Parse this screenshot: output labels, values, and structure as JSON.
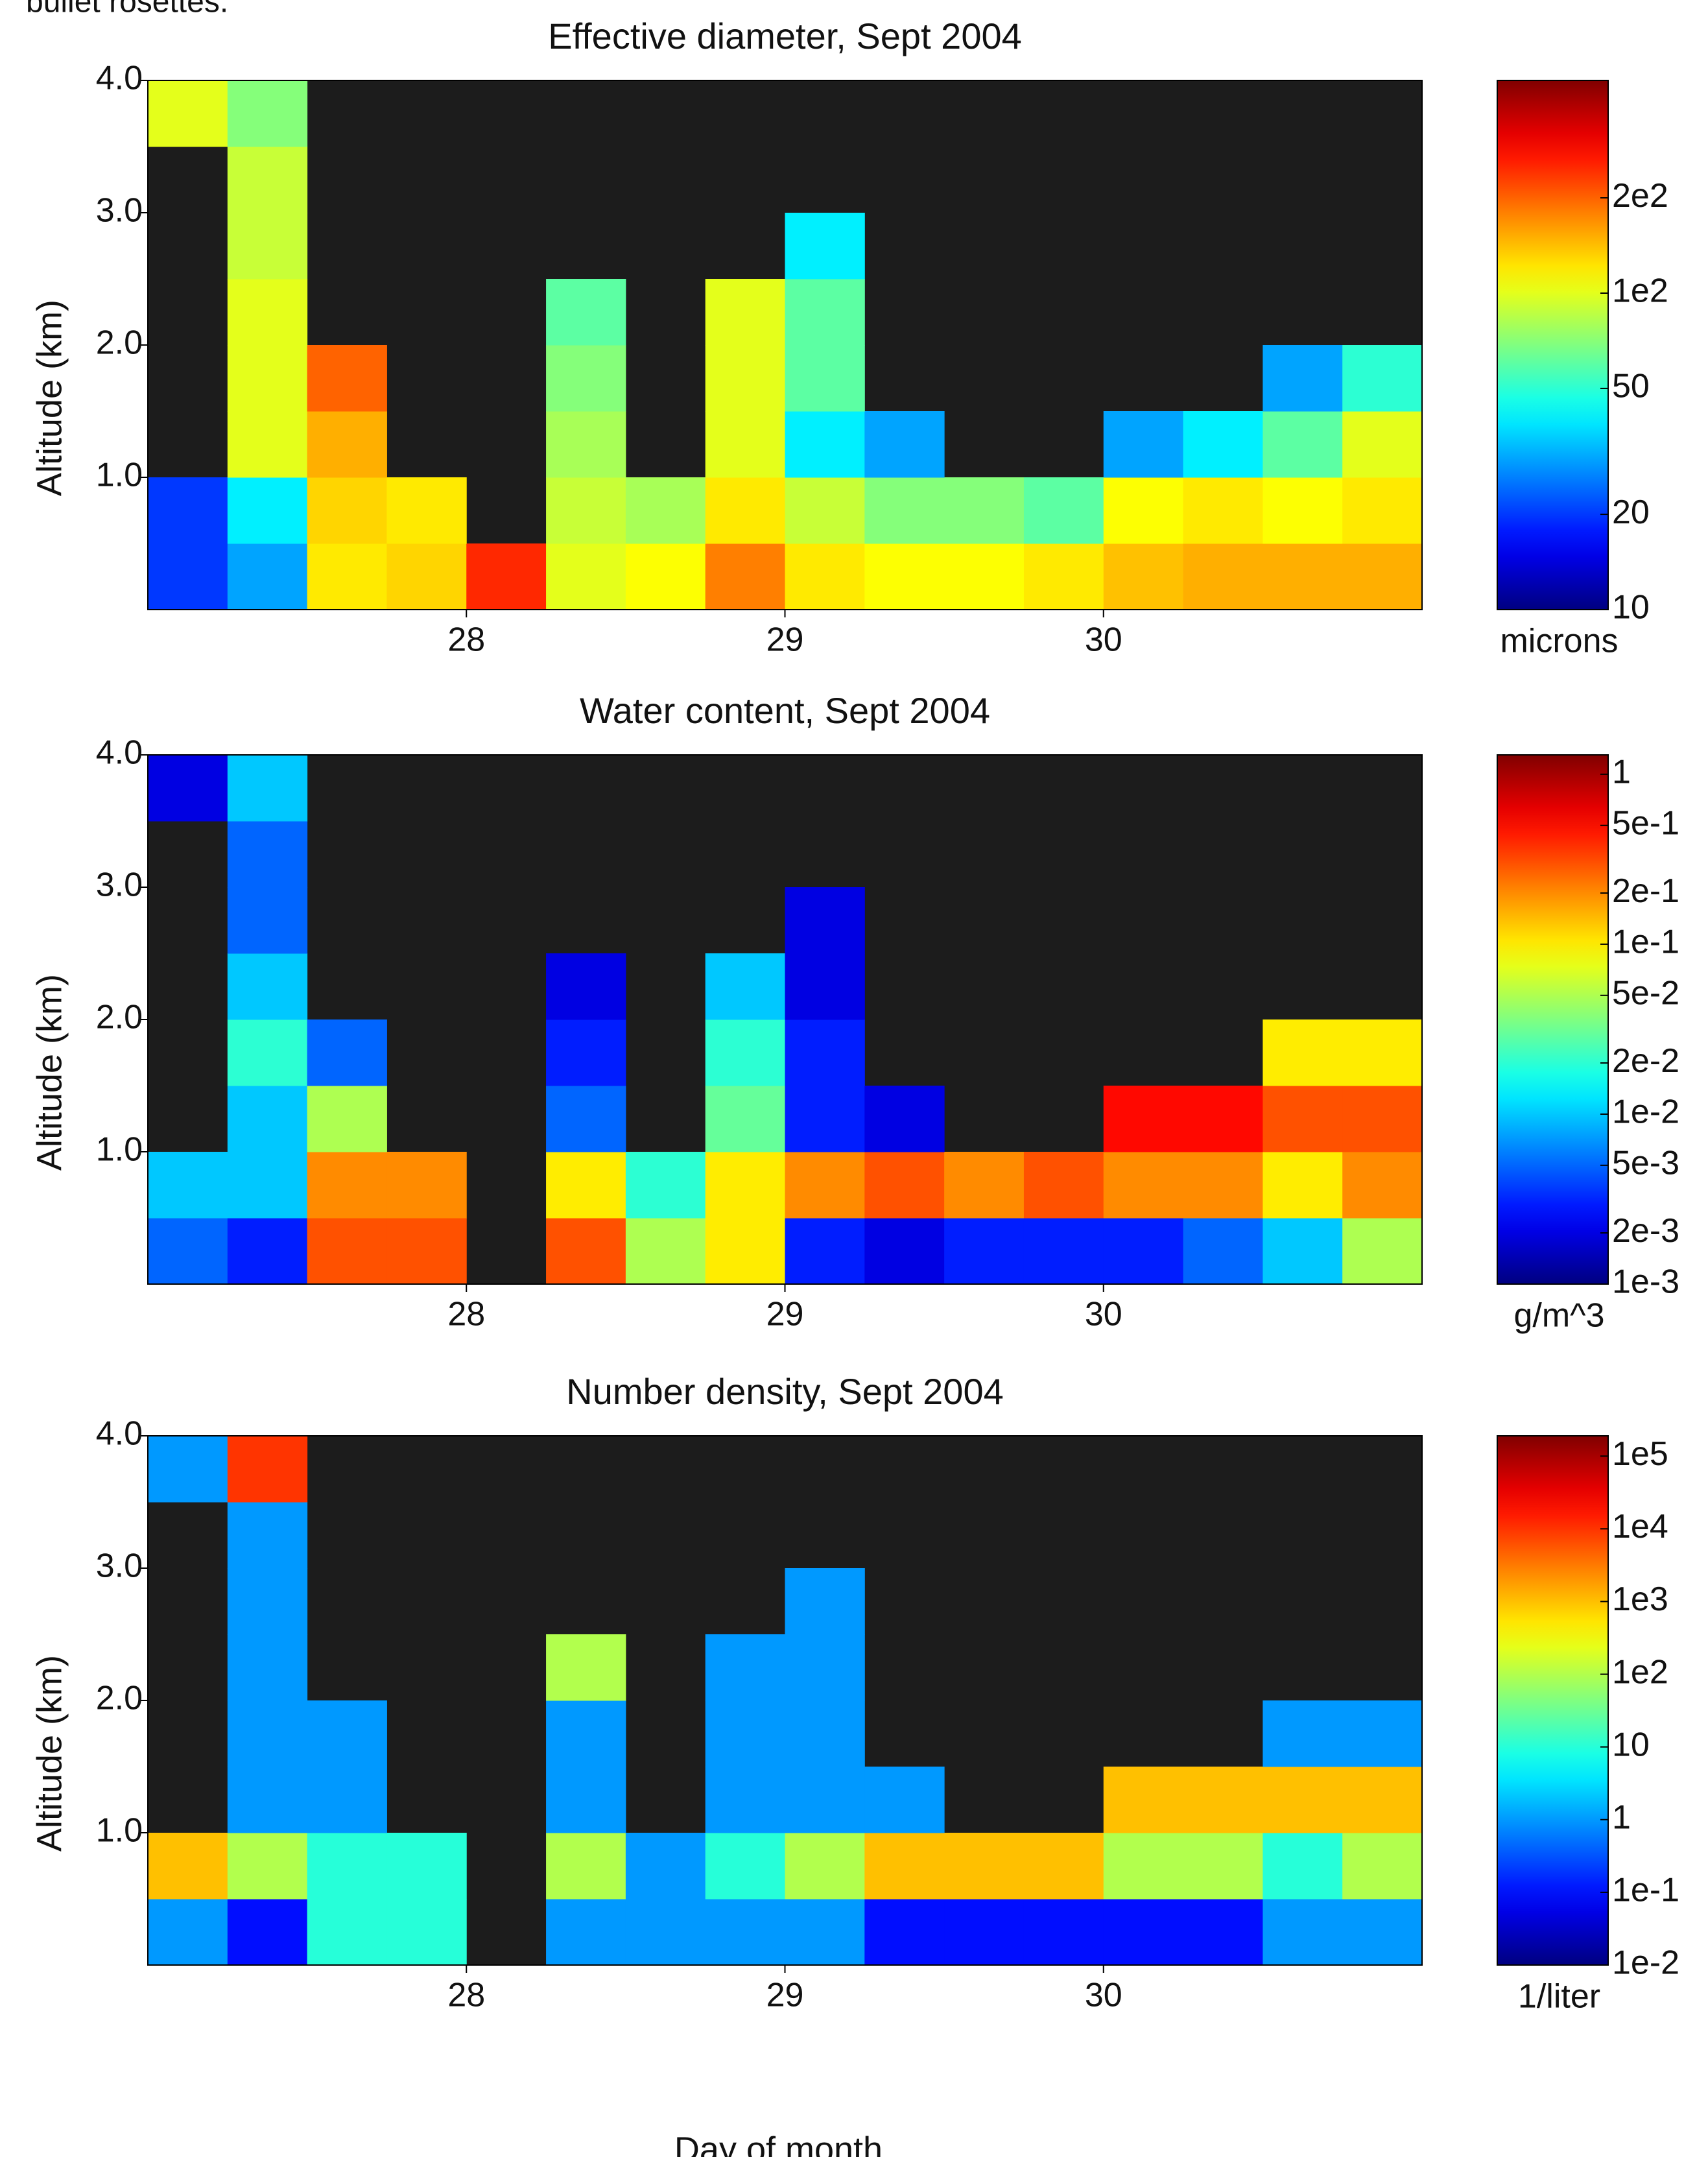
{
  "header_text": "bullet rosettes.",
  "chart_data": [
    {
      "type": "heatmap",
      "title": "Effective diameter, Sept 2004",
      "ylabel": "Altitude (km)",
      "colorbar_label": "microns",
      "colormap": "jet",
      "log_color": true,
      "background": "#1c1c1c",
      "grid": false,
      "xlim": [
        27,
        31
      ],
      "xticks": [
        28,
        29,
        30
      ],
      "ylim": [
        0,
        4
      ],
      "yticks": [
        {
          "value": 1,
          "label": "1.0"
        },
        {
          "value": 2,
          "label": "2.0"
        },
        {
          "value": 3,
          "label": "3.0"
        },
        {
          "value": 4,
          "label": "4.0"
        }
      ],
      "clim": [
        10,
        470
      ],
      "cticks": [
        {
          "value": 200,
          "label": "2e2"
        },
        {
          "value": 100,
          "label": "1e2"
        },
        50,
        20,
        10
      ],
      "x": [
        27.125,
        27.375,
        27.625,
        27.875,
        28.125,
        28.375,
        28.625,
        28.875,
        29.125,
        29.375,
        29.625,
        29.875,
        30.125,
        30.375,
        30.625,
        30.875
      ],
      "y": [
        0.25,
        0.75,
        1.25,
        1.75,
        2.25,
        2.75,
        3.25,
        3.75
      ],
      "z": [
        [
          20,
          30,
          120,
          130,
          250,
          100,
          110,
          180,
          120,
          110,
          110,
          120,
          140,
          150,
          150,
          150
        ],
        [
          20,
          40,
          130,
          120,
          null,
          90,
          80,
          120,
          90,
          70,
          70,
          60,
          110,
          120,
          110,
          120
        ],
        [
          null,
          100,
          150,
          null,
          null,
          80,
          null,
          100,
          40,
          30,
          null,
          null,
          30,
          40,
          60,
          100
        ],
        [
          null,
          100,
          200,
          null,
          null,
          70,
          null,
          100,
          60,
          null,
          null,
          null,
          null,
          null,
          30,
          50
        ],
        [
          null,
          100,
          null,
          null,
          null,
          60,
          null,
          100,
          60,
          null,
          null,
          null,
          null,
          null,
          null,
          null
        ],
        [
          null,
          90,
          null,
          null,
          null,
          null,
          null,
          null,
          40,
          null,
          null,
          null,
          null,
          null,
          null,
          null
        ],
        [
          null,
          90,
          null,
          null,
          null,
          null,
          null,
          null,
          null,
          null,
          null,
          null,
          null,
          null,
          null,
          null
        ],
        [
          100,
          70,
          null,
          null,
          null,
          null,
          null,
          null,
          null,
          null,
          null,
          null,
          null,
          null,
          null,
          null
        ]
      ]
    },
    {
      "type": "heatmap",
      "title": "Water content, Sept 2004",
      "ylabel": "Altitude (km)",
      "colorbar_label": "g/m^3",
      "colormap": "jet",
      "log_color": true,
      "background": "#1c1c1c",
      "grid": false,
      "xlim": [
        27,
        31
      ],
      "xticks": [
        28,
        29,
        30
      ],
      "ylim": [
        0,
        4
      ],
      "yticks": [
        {
          "value": 1,
          "label": "1.0"
        },
        {
          "value": 2,
          "label": "2.0"
        },
        {
          "value": 3,
          "label": "3.0"
        },
        {
          "value": 4,
          "label": "4.0"
        }
      ],
      "clim": [
        0.001,
        1.3
      ],
      "cticks": [
        1,
        {
          "value": 0.5,
          "label": "5e-1"
        },
        {
          "value": 0.2,
          "label": "2e-1"
        },
        {
          "value": 0.1,
          "label": "1e-1"
        },
        {
          "value": 0.05,
          "label": "5e-2"
        },
        {
          "value": 0.02,
          "label": "2e-2"
        },
        {
          "value": 0.01,
          "label": "1e-2"
        },
        {
          "value": 0.005,
          "label": "5e-3"
        },
        {
          "value": 0.002,
          "label": "2e-3"
        },
        {
          "value": 0.001,
          "label": "1e-3"
        }
      ],
      "x": [
        27.125,
        27.375,
        27.625,
        27.875,
        28.125,
        28.375,
        28.625,
        28.875,
        29.125,
        29.375,
        29.625,
        29.875,
        30.125,
        30.375,
        30.625,
        30.875
      ],
      "y": [
        0.25,
        0.75,
        1.25,
        1.75,
        2.25,
        2.75,
        3.25,
        3.75
      ],
      "z": [
        [
          0.005,
          0.003,
          0.3,
          0.3,
          null,
          0.3,
          0.05,
          0.1,
          0.003,
          0.002,
          0.003,
          0.003,
          0.003,
          0.005,
          0.01,
          0.05
        ],
        [
          0.01,
          0.01,
          0.2,
          0.2,
          null,
          0.1,
          0.02,
          0.1,
          0.2,
          0.3,
          0.2,
          0.3,
          0.2,
          0.2,
          0.1,
          0.2
        ],
        [
          null,
          0.01,
          0.05,
          null,
          null,
          0.005,
          null,
          0.03,
          0.003,
          0.002,
          null,
          null,
          0.5,
          0.5,
          0.3,
          0.3
        ],
        [
          null,
          0.02,
          0.005,
          null,
          null,
          0.003,
          null,
          0.02,
          0.003,
          null,
          null,
          null,
          null,
          null,
          0.1,
          0.1
        ],
        [
          null,
          0.01,
          null,
          null,
          null,
          0.002,
          null,
          0.01,
          0.002,
          null,
          null,
          null,
          null,
          null,
          null,
          null
        ],
        [
          null,
          0.005,
          null,
          null,
          null,
          null,
          null,
          null,
          0.002,
          null,
          null,
          null,
          null,
          null,
          null,
          null
        ],
        [
          null,
          0.005,
          null,
          null,
          null,
          null,
          null,
          null,
          null,
          null,
          null,
          null,
          null,
          null,
          null,
          null
        ],
        [
          0.002,
          0.01,
          null,
          null,
          null,
          null,
          null,
          null,
          null,
          null,
          null,
          null,
          null,
          null,
          null,
          null
        ]
      ]
    },
    {
      "type": "heatmap",
      "title": "Number density, Sept 2004",
      "ylabel": "Altitude (km)",
      "colorbar_label": "1/liter",
      "xlabel": "Day of month",
      "colormap": "jet",
      "log_color": true,
      "background": "#1c1c1c",
      "grid": false,
      "xlim": [
        27,
        31
      ],
      "xticks": [
        28,
        29,
        30
      ],
      "ylim": [
        0,
        4
      ],
      "yticks": [
        {
          "value": 1,
          "label": "1.0"
        },
        {
          "value": 2,
          "label": "2.0"
        },
        {
          "value": 3,
          "label": "3.0"
        },
        {
          "value": 4,
          "label": "4.0"
        }
      ],
      "clim": [
        0.01,
        190000
      ],
      "cticks": [
        {
          "value": 100000,
          "label": "1e5"
        },
        {
          "value": 10000,
          "label": "1e4"
        },
        {
          "value": 1000,
          "label": "1e3"
        },
        {
          "value": 100,
          "label": "1e2"
        },
        10,
        1,
        {
          "value": 0.1,
          "label": "1e-1"
        },
        {
          "value": 0.01,
          "label": "1e-2"
        }
      ],
      "x": [
        27.125,
        27.375,
        27.625,
        27.875,
        28.125,
        28.375,
        28.625,
        28.875,
        29.125,
        29.375,
        29.625,
        29.875,
        30.125,
        30.375,
        30.625,
        30.875
      ],
      "y": [
        0.25,
        0.75,
        1.25,
        1.75,
        2.25,
        2.75,
        3.25,
        3.75
      ],
      "z": [
        [
          1,
          0.1,
          10,
          10,
          null,
          1,
          1,
          1,
          1,
          0.1,
          0.1,
          0.1,
          0.1,
          0.1,
          1,
          1
        ],
        [
          1000,
          100,
          10,
          10,
          null,
          100,
          1,
          10,
          100,
          1000,
          1000,
          1000,
          100,
          100,
          10,
          100
        ],
        [
          null,
          1,
          1,
          null,
          null,
          1,
          null,
          1,
          1,
          1,
          null,
          null,
          1000,
          1000,
          1000,
          1000
        ],
        [
          null,
          1,
          1,
          null,
          null,
          1,
          null,
          1,
          1,
          null,
          null,
          null,
          null,
          null,
          1,
          1
        ],
        [
          null,
          1,
          null,
          null,
          null,
          100,
          null,
          1,
          1,
          null,
          null,
          null,
          null,
          null,
          null,
          null
        ],
        [
          null,
          1,
          null,
          null,
          null,
          null,
          null,
          null,
          1,
          null,
          null,
          null,
          null,
          null,
          null,
          null
        ],
        [
          null,
          1,
          null,
          null,
          null,
          null,
          null,
          null,
          null,
          null,
          null,
          null,
          null,
          null,
          null,
          null
        ],
        [
          1,
          10000,
          null,
          null,
          null,
          null,
          null,
          null,
          null,
          null,
          null,
          null,
          null,
          null,
          null,
          null
        ]
      ]
    }
  ]
}
